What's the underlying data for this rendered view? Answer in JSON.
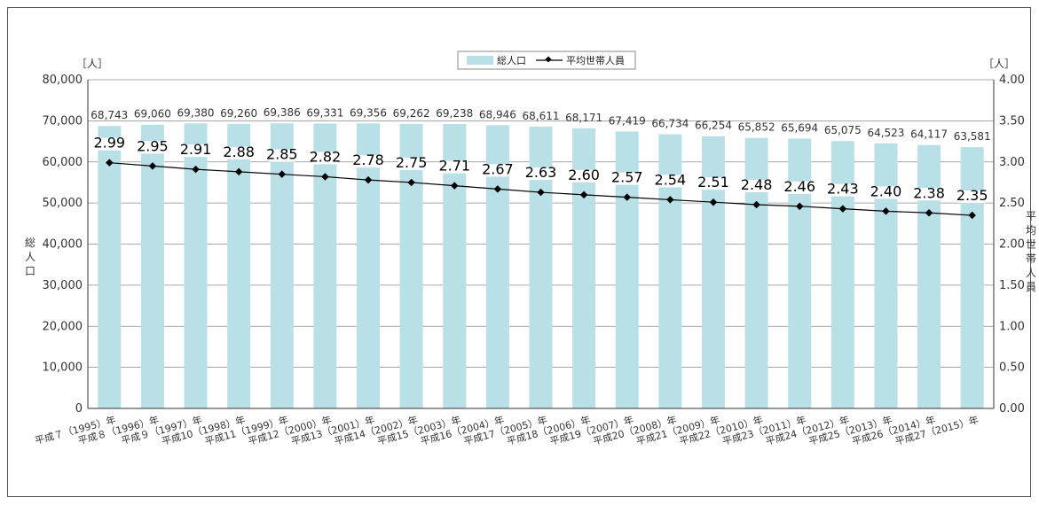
{
  "chart_data": {
    "type": "bar",
    "categories": [
      "平成７（1995）年",
      "平成８（1996）年",
      "平成９（1997）年",
      "平成10（1998）年",
      "平成11（1999）年",
      "平成12（2000）年",
      "平成13（2001）年",
      "平成14（2002）年",
      "平成15（2003）年",
      "平成16（2004）年",
      "平成17（2005）年",
      "平成18（2006）年",
      "平成19（2007）年",
      "平成20（2008）年",
      "平成21（2009）年",
      "平成22（2010）年",
      "平成23（2011）年",
      "平成24（2012）年",
      "平成25（2013）年",
      "平成26（2014）年",
      "平成27（2015）年"
    ],
    "series": [
      {
        "name": "総人口",
        "type": "bar",
        "axis": "left",
        "values": [
          68743,
          69060,
          69380,
          69260,
          69386,
          69331,
          69356,
          69262,
          69238,
          68946,
          68611,
          68171,
          67419,
          66734,
          66254,
          65852,
          65694,
          65075,
          64523,
          64117,
          63581
        ],
        "labels": [
          "68,743",
          "69,060",
          "69,380",
          "69,260",
          "69,386",
          "69,331",
          "69,356",
          "69,262",
          "69,238",
          "68,946",
          "68,611",
          "68,171",
          "67,419",
          "66,734",
          "66,254",
          "65,852",
          "65,694",
          "65,075",
          "64,523",
          "64,117",
          "63,581"
        ],
        "color": "#b9dfe7"
      },
      {
        "name": "平均世帯人員",
        "type": "line",
        "axis": "right",
        "values": [
          2.99,
          2.95,
          2.91,
          2.88,
          2.85,
          2.82,
          2.78,
          2.75,
          2.71,
          2.67,
          2.63,
          2.6,
          2.57,
          2.54,
          2.51,
          2.48,
          2.46,
          2.43,
          2.4,
          2.38,
          2.35
        ],
        "labels": [
          "2.99",
          "2.95",
          "2.91",
          "2.88",
          "2.85",
          "2.82",
          "2.78",
          "2.75",
          "2.71",
          "2.67",
          "2.63",
          "2.60",
          "2.57",
          "2.54",
          "2.51",
          "2.48",
          "2.46",
          "2.43",
          "2.40",
          "2.38",
          "2.35"
        ],
        "color": "#000000"
      }
    ],
    "y_left": {
      "label": "総人口",
      "unit": "［人］",
      "ylim": [
        0,
        80000
      ],
      "ticks": [
        "0",
        "10,000",
        "20,000",
        "30,000",
        "40,000",
        "50,000",
        "60,000",
        "70,000",
        "80,000"
      ]
    },
    "y_right": {
      "label": "平均世帯人員",
      "unit": "［人］",
      "ylim": [
        0,
        4
      ],
      "ticks": [
        "0.00",
        "0.50",
        "1.00",
        "1.50",
        "2.00",
        "2.50",
        "3.00",
        "3.50",
        "4.00"
      ]
    },
    "legend": {
      "position": "top-center",
      "items": [
        "総人口",
        "平均世帯人員"
      ]
    },
    "grid": true
  }
}
